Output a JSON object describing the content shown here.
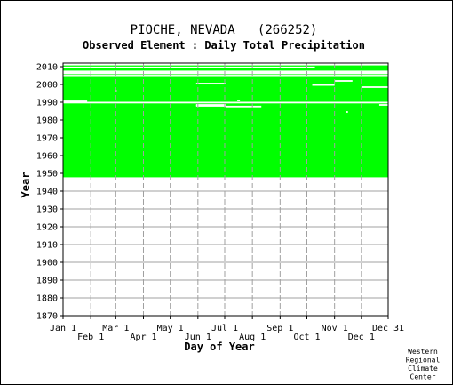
{
  "chart_data": {
    "type": "heatmap",
    "title": "PIOCHE, NEVADA   (266252)",
    "subtitle": "Observed Element : Daily Total Precipitation",
    "xlabel": "Day of Year",
    "ylabel": "Year",
    "x_ticks_top_row": [
      "Jan 1",
      "Mar 1",
      "May 1",
      "Jul 1",
      "Sep 1",
      "Nov 1",
      "Dec 31"
    ],
    "x_ticks_bottom_row": [
      "Feb 1",
      "Apr 1",
      "Jun 1",
      "Aug 1",
      "Oct 1",
      "Dec 1"
    ],
    "x_tick_days": [
      1,
      32,
      60,
      91,
      121,
      152,
      182,
      213,
      244,
      274,
      305,
      335,
      365
    ],
    "y_ticks": [
      "2010",
      "2000",
      "1990",
      "1980",
      "1970",
      "1960",
      "1950",
      "1940",
      "1930",
      "1920",
      "1910",
      "1900",
      "1890",
      "1880",
      "1870"
    ],
    "ylim": [
      1870,
      2011
    ],
    "xlim": [
      1,
      365
    ],
    "data_color": "#00ff00",
    "record_blocks": [
      {
        "from_day": 1,
        "to_day": 365,
        "from_year": 1947.8,
        "to_year": 2005.8
      },
      {
        "from_day": 1,
        "to_day": 365,
        "from_year": 2007.8,
        "to_year": 2010.7
      }
    ],
    "missing_segments": [
      {
        "year": 1989.8,
        "from_day": 1,
        "to_day": 365
      },
      {
        "year": 1990.5,
        "from_day": 1,
        "to_day": 28
      },
      {
        "year": 2004.7,
        "from_day": 1,
        "to_day": 365
      },
      {
        "year": 2005.0,
        "from_day": 1,
        "to_day": 365
      },
      {
        "year": 1988.5,
        "from_day": 150,
        "to_day": 184
      },
      {
        "year": 1988.0,
        "from_day": 150,
        "to_day": 184
      },
      {
        "year": 1987.6,
        "from_day": 184,
        "to_day": 223
      },
      {
        "year": 2000.5,
        "from_day": 150,
        "to_day": 184
      },
      {
        "year": 1999.7,
        "from_day": 280,
        "to_day": 305
      },
      {
        "year": 2002.0,
        "from_day": 305,
        "to_day": 325
      },
      {
        "year": 1998.5,
        "from_day": 335,
        "to_day": 365
      },
      {
        "year": 1988.5,
        "from_day": 355,
        "to_day": 365
      },
      {
        "year": 2009.6,
        "from_day": 1,
        "to_day": 283
      },
      {
        "year": 1984.5,
        "from_day": 318,
        "to_day": 320
      },
      {
        "year": 1996.5,
        "from_day": 59,
        "to_day": 61
      },
      {
        "year": 1991.0,
        "from_day": 196,
        "to_day": 199
      }
    ],
    "grid": true,
    "credit": [
      "Western",
      "Regional",
      "Climate",
      "Center"
    ]
  }
}
